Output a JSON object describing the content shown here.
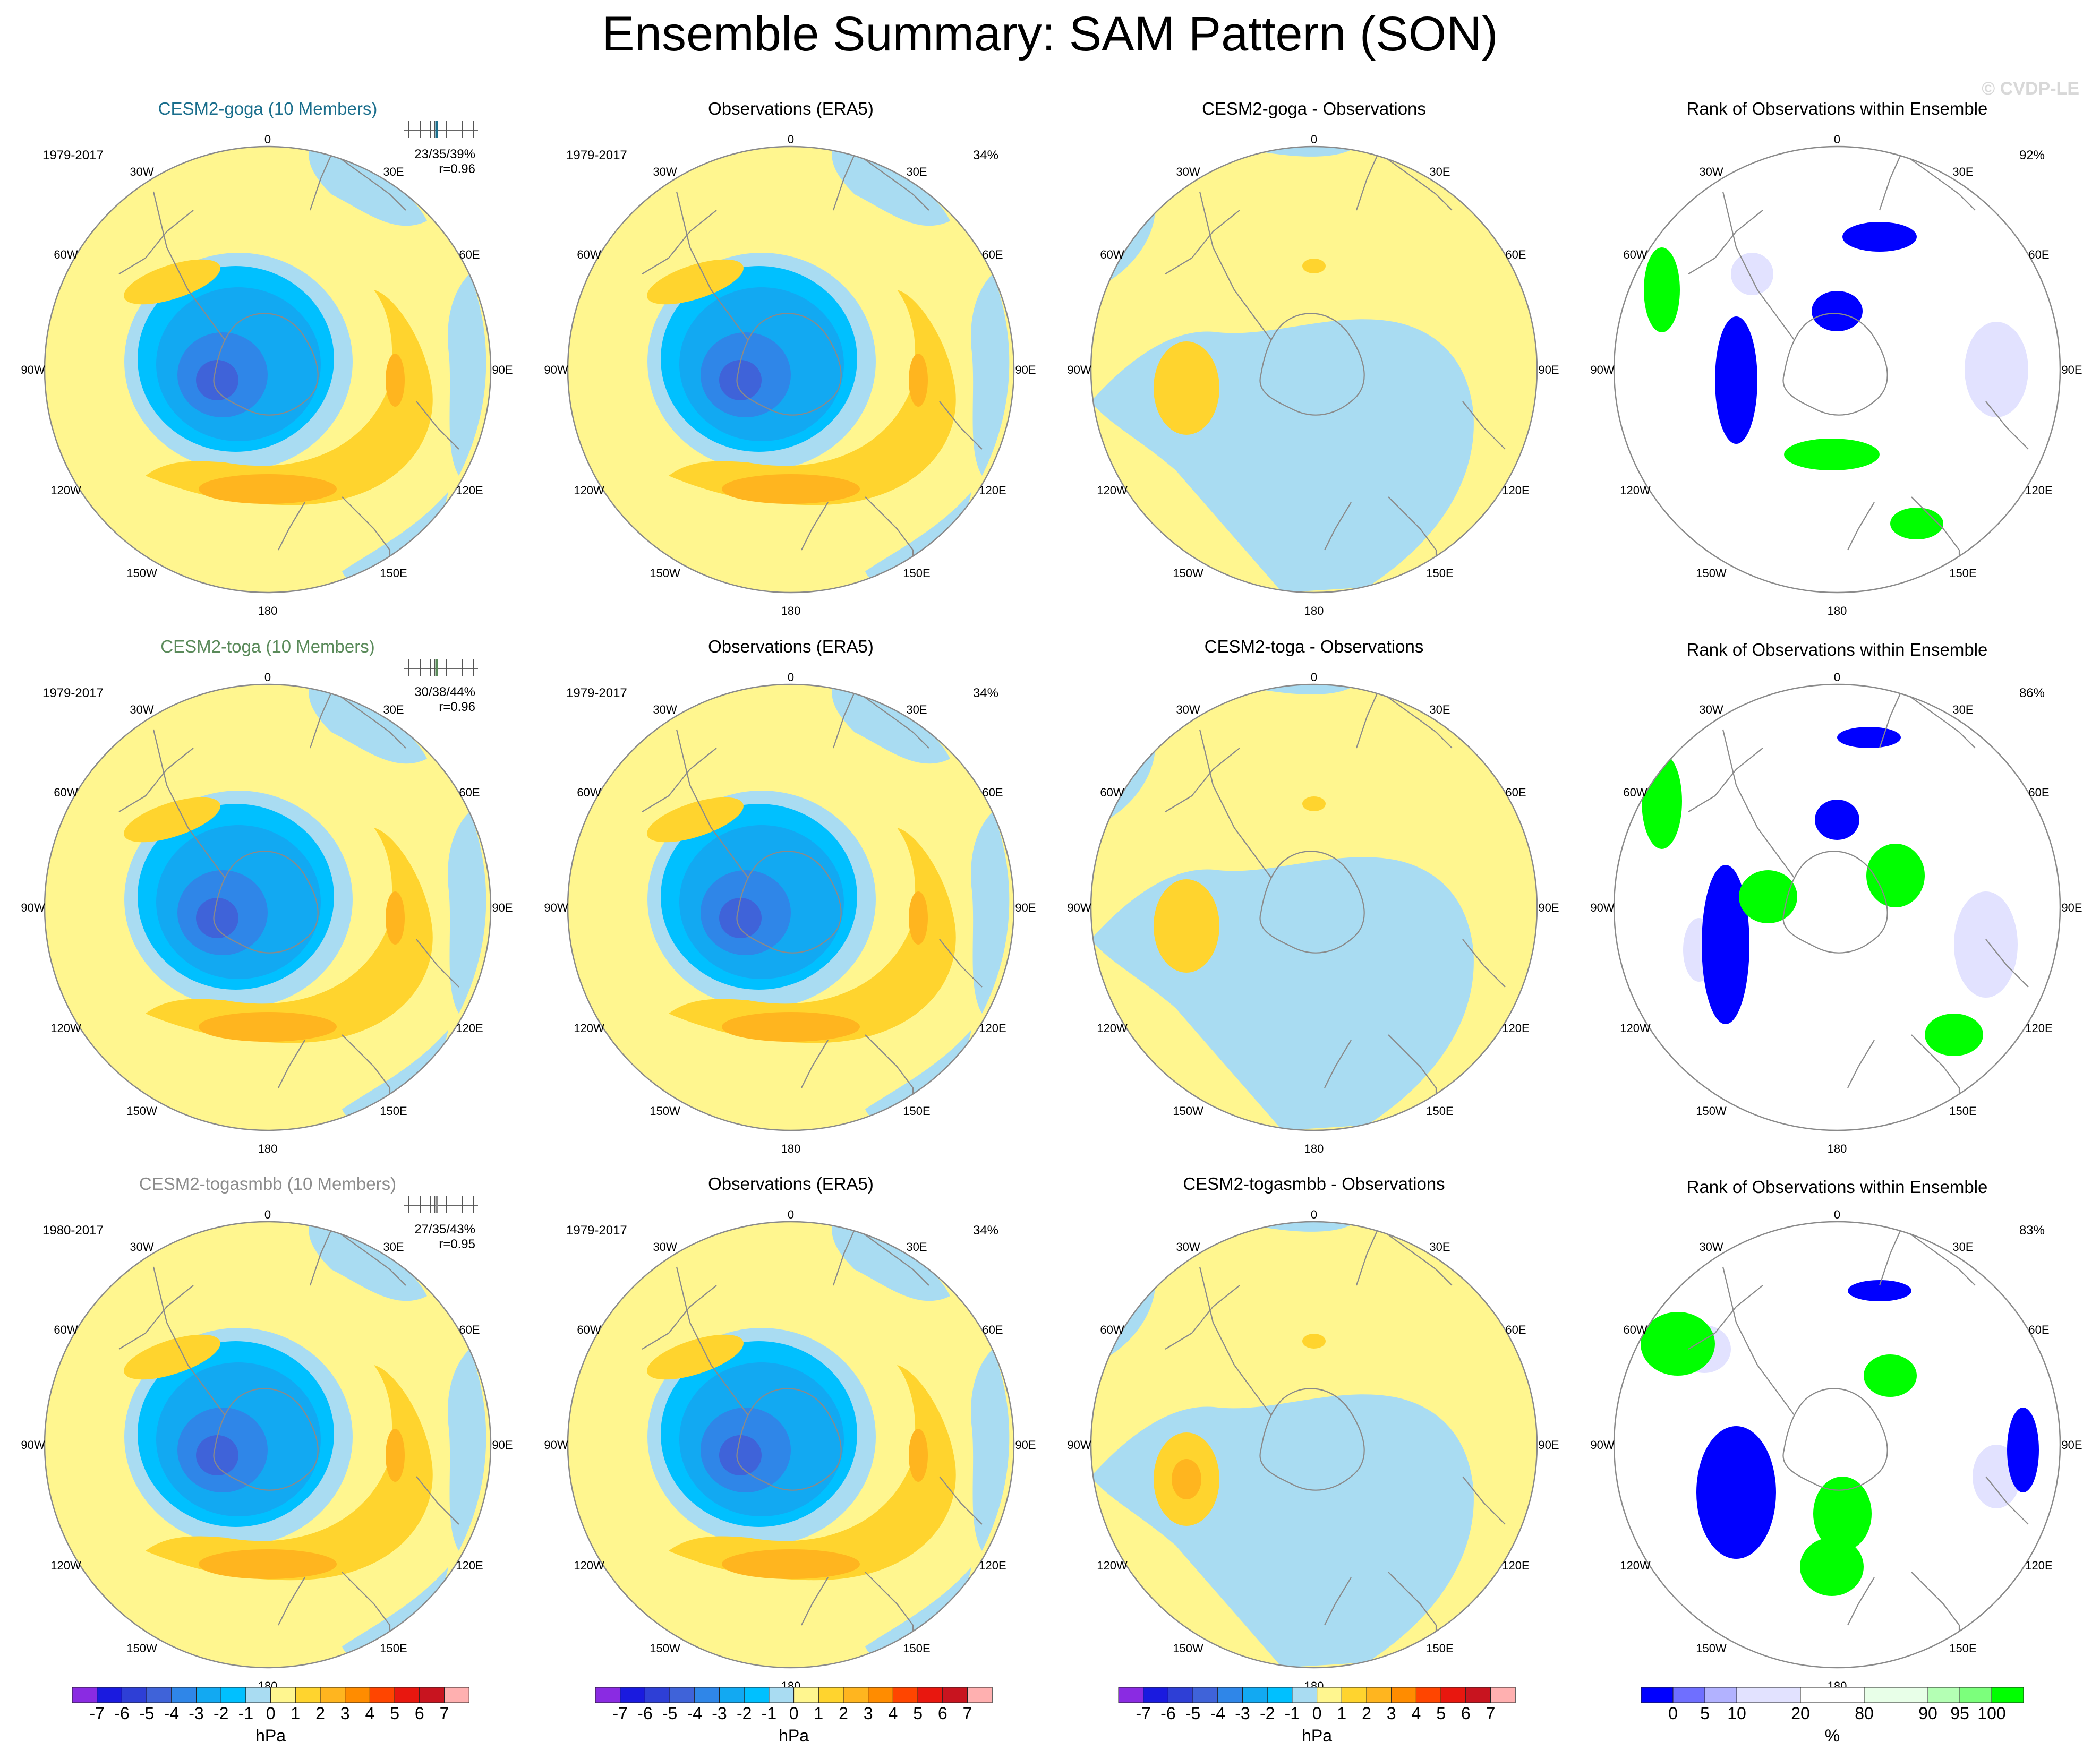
{
  "title": "Ensemble Summary: SAM Pattern (SON)",
  "watermark": "© CVDP-LE",
  "colors": {
    "model_title_goga": "#1a6e8c",
    "model_title_toga": "#5a8a5a",
    "model_title_togasmbb": "#8c8c8c",
    "ocean_yellow": "#fff68f",
    "land_line": "#8a8a8a"
  },
  "lon_labels": [
    "0",
    "30E",
    "60E",
    "90E",
    "120E",
    "150E",
    "180",
    "150W",
    "120W",
    "90W",
    "60W",
    "30W"
  ],
  "rows": [
    {
      "model": "CESM2-goga",
      "model_title": "CESM2-goga (10 Members)",
      "model_years": "1979-2017",
      "stats_pct": "23/35/39%",
      "stats_r": "r=0.96",
      "obs_title": "Observations (ERA5)",
      "obs_years": "1979-2017",
      "obs_pct": "34%",
      "diff_title": "CESM2-goga - Observations",
      "rank_title": "Rank of Observations within Ensemble",
      "rank_pct": "92%"
    },
    {
      "model": "CESM2-toga",
      "model_title": "CESM2-toga (10 Members)",
      "model_years": "1979-2017",
      "stats_pct": "30/38/44%",
      "stats_r": "r=0.96",
      "obs_title": "Observations (ERA5)",
      "obs_years": "1979-2017",
      "obs_pct": "34%",
      "diff_title": "CESM2-toga - Observations",
      "rank_title": "Rank of Observations within Ensemble",
      "rank_pct": "86%"
    },
    {
      "model": "CESM2-togasmbb",
      "model_title": "CESM2-togasmbb (10 Members)",
      "model_years": "1980-2017",
      "stats_pct": "27/35/43%",
      "stats_r": "r=0.95",
      "obs_title": "Observations (ERA5)",
      "obs_years": "1979-2017",
      "obs_pct": "34%",
      "diff_title": "CESM2-togasmbb - Observations",
      "rank_title": "Rank of Observations within Ensemble",
      "rank_pct": "83%"
    }
  ],
  "hpa_colorbar": {
    "unit_label": "hPa",
    "tick_labels": [
      "-7",
      "-6",
      "-5",
      "-4",
      "-3",
      "-2",
      "-1",
      "0",
      "1",
      "2",
      "3",
      "4",
      "5",
      "6",
      "7"
    ],
    "colors": [
      "#8a2be2",
      "#1a1adf",
      "#2e3fd6",
      "#3f63d9",
      "#2f86e8",
      "#12a9f2",
      "#00c0ff",
      "#a9dcf2",
      "#fff68f",
      "#ffd42e",
      "#ffb51f",
      "#ff8c00",
      "#ff4500",
      "#e8170f",
      "#c8141f",
      "#ffb0b0"
    ]
  },
  "rank_colorbar": {
    "unit_label": "%",
    "tick_labels": [
      "0",
      "5",
      "10",
      "20",
      "80",
      "90",
      "95",
      "100"
    ],
    "colors": [
      "#0000ff",
      "#6f6fff",
      "#b2b2ff",
      "#e2e2ff",
      "#ffffff",
      "#e8ffe8",
      "#b4ffb4",
      "#7cff7c",
      "#00ff00"
    ]
  },
  "chart_data": {
    "type": "heatmap",
    "title": "Ensemble Summary: SAM Pattern (SON)",
    "projection": "south polar stereographic",
    "panels_per_row": [
      "ensemble mean",
      "observations",
      "difference",
      "rank"
    ],
    "models": [
      "CESM2-goga",
      "CESM2-toga",
      "CESM2-togasmbb"
    ],
    "observations": "ERA5",
    "units": "hPa",
    "contour_levels": [
      -7,
      -6,
      -5,
      -4,
      -3,
      -2,
      -1,
      0,
      1,
      2,
      3,
      4,
      5,
      6,
      7
    ],
    "rank_levels_percent": [
      0,
      5,
      10,
      20,
      80,
      90,
      95,
      100
    ],
    "pattern_correlation": [
      0.96,
      0.96,
      0.95
    ],
    "rank_pct_within_ensemble": [
      92,
      86,
      83
    ],
    "observations_pct_variance": 34
  }
}
